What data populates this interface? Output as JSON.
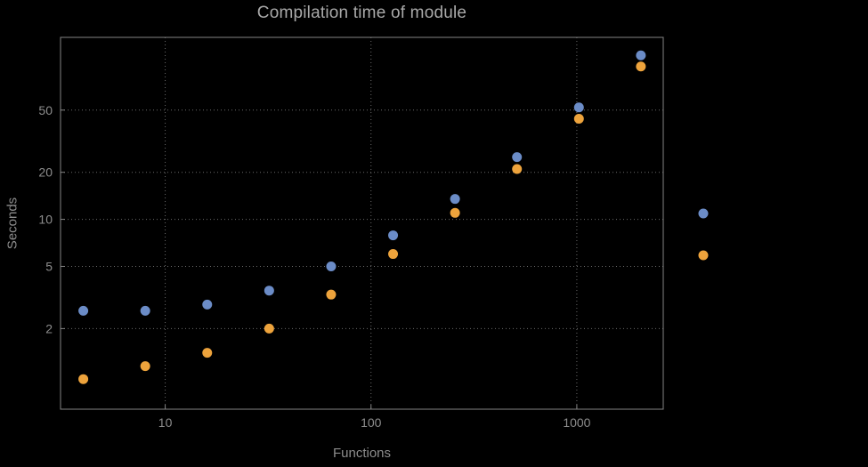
{
  "page": {
    "background": "#000000"
  },
  "chart_data": {
    "type": "scatter",
    "title": "Compilation time of module",
    "xlabel": "Functions",
    "ylabel": "Seconds",
    "x_scale": "log",
    "y_scale": "log",
    "xlim": [
      3.1,
      2630
    ],
    "ylim": [
      0.61,
      146
    ],
    "x_ticks": [
      10,
      100,
      1000
    ],
    "y_ticks": [
      2,
      5,
      10,
      20,
      50
    ],
    "grid": "dotted",
    "x": [
      4,
      8,
      16,
      32,
      64,
      128,
      256,
      512,
      1024,
      2048
    ],
    "series": [
      {
        "name": "blue-series",
        "color": "#6b8cc7",
        "values": [
          2.6,
          2.6,
          2.85,
          3.5,
          5.0,
          7.9,
          13.5,
          25,
          52,
          112
        ]
      },
      {
        "name": "orange-series",
        "color": "#edа33c",
        "values": [
          0.95,
          1.15,
          1.4,
          2.0,
          3.3,
          6.0,
          11,
          21,
          44,
          95
        ]
      }
    ],
    "legend": {
      "position": "right-of-plot",
      "labels_visible": false,
      "markers": [
        "blue-series",
        "orange-series"
      ]
    },
    "style": {
      "frame_color": "#858585",
      "grid_color": "#6a6a6a",
      "tick_label_color": "#8d8d8d",
      "point_radius": 5.5,
      "series_colors": [
        "#6b8cc7",
        "#eda33c"
      ]
    }
  }
}
